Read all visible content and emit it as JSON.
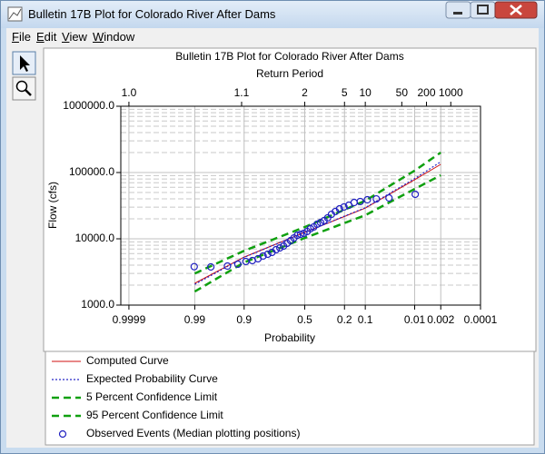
{
  "window": {
    "title": "Bulletin 17B Plot for Colorado River After Dams",
    "menu": [
      "File",
      "Edit",
      "View",
      "Window"
    ]
  },
  "chart_data": {
    "type": "line",
    "title": "Bulletin 17B Plot for Colorado River After Dams",
    "x_label": "Probability",
    "x2_label": "Return Period",
    "y_label": "Flow (cfs)",
    "x_scale": "normal-probability",
    "x2_scale": "return-period",
    "y_scale": "log",
    "xlim": [
      0.99995,
      0.0001
    ],
    "xticks": [
      0.9999,
      0.99,
      0.9,
      0.5,
      0.2,
      0.1,
      0.01,
      0.002,
      0.0001
    ],
    "x2ticks": [
      {
        "value": 1.0001,
        "label": "1.0"
      },
      1.1,
      2,
      5,
      10,
      50,
      200,
      1000
    ],
    "ylim": [
      1000,
      1000000
    ],
    "yticks": [
      {
        "value": 1000,
        "label": "1000.0"
      },
      {
        "value": 10000,
        "label": "10000.0"
      },
      {
        "value": 100000,
        "label": "100000.0"
      },
      {
        "value": 1000000,
        "label": "1000000.0"
      }
    ],
    "grid": true,
    "minor_grid": true,
    "legend": "bottom",
    "series": [
      {
        "name": "Computed Curve",
        "color": "#d01010",
        "style": "solid",
        "x": [
          0.99,
          0.9,
          0.5,
          0.1,
          0.01,
          0.002
        ],
        "values": [
          2130,
          5300,
          12500,
          29000,
          78000,
          133000
        ]
      },
      {
        "name": "Expected Probability Curve",
        "color": "#2828c8",
        "style": "dotted",
        "x": [
          0.99,
          0.9,
          0.5,
          0.1,
          0.01,
          0.002
        ],
        "values": [
          2050,
          5250,
          12500,
          29500,
          81000,
          145000
        ]
      },
      {
        "name": "5 Percent Confidence Limit",
        "color": "#10a010",
        "style": "dashed",
        "x": [
          0.99,
          0.9,
          0.5,
          0.1,
          0.01,
          0.002
        ],
        "values": [
          3000,
          6600,
          15000,
          37600,
          107000,
          200000
        ]
      },
      {
        "name": "95 Percent Confidence Limit",
        "color": "#10a010",
        "style": "dashed",
        "x": [
          0.99,
          0.9,
          0.5,
          0.1,
          0.01,
          0.002
        ],
        "values": [
          1600,
          4400,
          10300,
          22700,
          56500,
          91000
        ]
      },
      {
        "name": "Observed Events (Median plotting positions)",
        "color": "#2020c0",
        "style": "markers",
        "x": [
          0.0097,
          0.0373,
          0.0649,
          0.0925,
          0.1202,
          0.1478,
          0.1754,
          0.203,
          0.2307,
          0.2583,
          0.2859,
          0.3135,
          0.3412,
          0.3688,
          0.3964,
          0.424,
          0.4517,
          0.4793,
          0.5069,
          0.5345,
          0.5622,
          0.5898,
          0.6174,
          0.645,
          0.6727,
          0.7003,
          0.7279,
          0.7555,
          0.7831,
          0.8108,
          0.8384,
          0.866,
          0.8936,
          0.9213,
          0.9489,
          0.9765,
          0.9903
        ],
        "values": [
          46900,
          41300,
          40000,
          38800,
          36500,
          35300,
          32100,
          30200,
          28300,
          25800,
          23400,
          20700,
          18800,
          17600,
          16600,
          15100,
          14200,
          12900,
          12100,
          11700,
          11300,
          10300,
          9400,
          8550,
          7770,
          7300,
          6850,
          6230,
          5850,
          5500,
          5000,
          4690,
          4550,
          4130,
          3880,
          3760,
          3800
        ]
      }
    ]
  }
}
